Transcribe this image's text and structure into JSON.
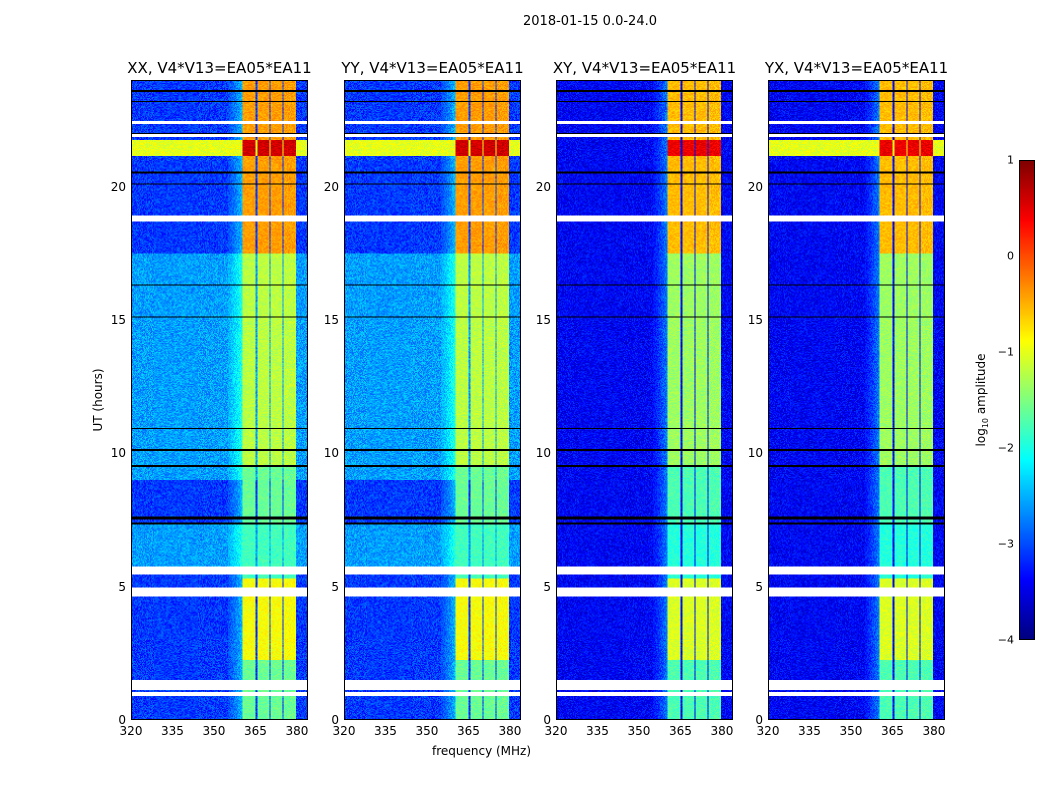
{
  "chart_data": {
    "type": "heatmap",
    "suptitle": "2018-01-15 0.0-24.0",
    "xlabel": "frequency (MHz)",
    "ylabel": "UT (hours)",
    "xlim": [
      320,
      384
    ],
    "ylim": [
      0,
      24
    ],
    "xticks": [
      "320",
      "335",
      "350",
      "365",
      "380"
    ],
    "xtick_values": [
      320,
      335,
      350,
      365,
      380
    ],
    "yticks": [
      "0",
      "5",
      "10",
      "15",
      "20"
    ],
    "ytick_values": [
      0,
      5,
      10,
      15,
      20
    ],
    "colorbar": {
      "label_main": "log",
      "label_sub": "10",
      "label_rest": " amplitude",
      "range": [
        -4,
        1
      ],
      "ticks": [
        "1",
        "0",
        "−1",
        "−2",
        "−3",
        "−4"
      ],
      "tick_values": [
        1,
        0,
        -1,
        -2,
        -3,
        -4
      ],
      "colormap": "jet"
    },
    "panels": [
      {
        "title": "XX, V4*V13=EA05*EA11",
        "background_level": -3.1,
        "quiet_band_level": -2.6
      },
      {
        "title": "YY, V4*V13=EA05*EA11",
        "background_level": -3.1,
        "quiet_band_level": -2.6
      },
      {
        "title": "XY, V4*V13=EA05*EA11",
        "background_level": -3.4,
        "quiet_band_level": -3.4
      },
      {
        "title": "YX, V4*V13=EA05*EA11",
        "background_level": -3.4,
        "quiet_band_level": -3.4
      }
    ],
    "rfi_bands_mhz": [
      [
        360.5,
        365.3
      ],
      [
        365.8,
        370.3
      ],
      [
        370.8,
        375.0
      ],
      [
        375.5,
        380.0
      ]
    ],
    "rfi_levels_by_hours": [
      {
        "from": 0,
        "to": 2.2,
        "level": -1.6
      },
      {
        "from": 2.2,
        "to": 5.3,
        "level": -0.9
      },
      {
        "from": 5.3,
        "to": 7.4,
        "level": -1.8
      },
      {
        "from": 7.4,
        "to": 9.5,
        "level": -1.6
      },
      {
        "from": 9.5,
        "to": 17.5,
        "level": -1.2
      },
      {
        "from": 17.5,
        "to": 21.2,
        "level": -0.4
      },
      {
        "from": 21.2,
        "to": 21.8,
        "level": 0.6
      },
      {
        "from": 21.8,
        "to": 24,
        "level": -0.4
      }
    ],
    "flagged_hours": [
      [
        0.85,
        1.0
      ],
      [
        1.1,
        1.45
      ],
      [
        4.6,
        4.95
      ],
      [
        5.45,
        5.75
      ],
      [
        18.7,
        18.95
      ],
      [
        21.9,
        22.0
      ],
      [
        22.4,
        22.5
      ]
    ],
    "dropout_hours": [
      [
        7.3,
        7.4
      ],
      [
        7.5,
        7.6
      ],
      [
        9.5,
        9.55
      ],
      [
        10.1,
        10.15
      ],
      [
        10.9,
        10.95
      ],
      [
        15.1,
        15.15
      ],
      [
        16.3,
        16.35
      ],
      [
        20.1,
        20.15
      ],
      [
        20.5,
        20.6
      ],
      [
        21.95,
        22.05
      ],
      [
        23.2,
        23.25
      ],
      [
        23.6,
        23.65
      ]
    ]
  }
}
